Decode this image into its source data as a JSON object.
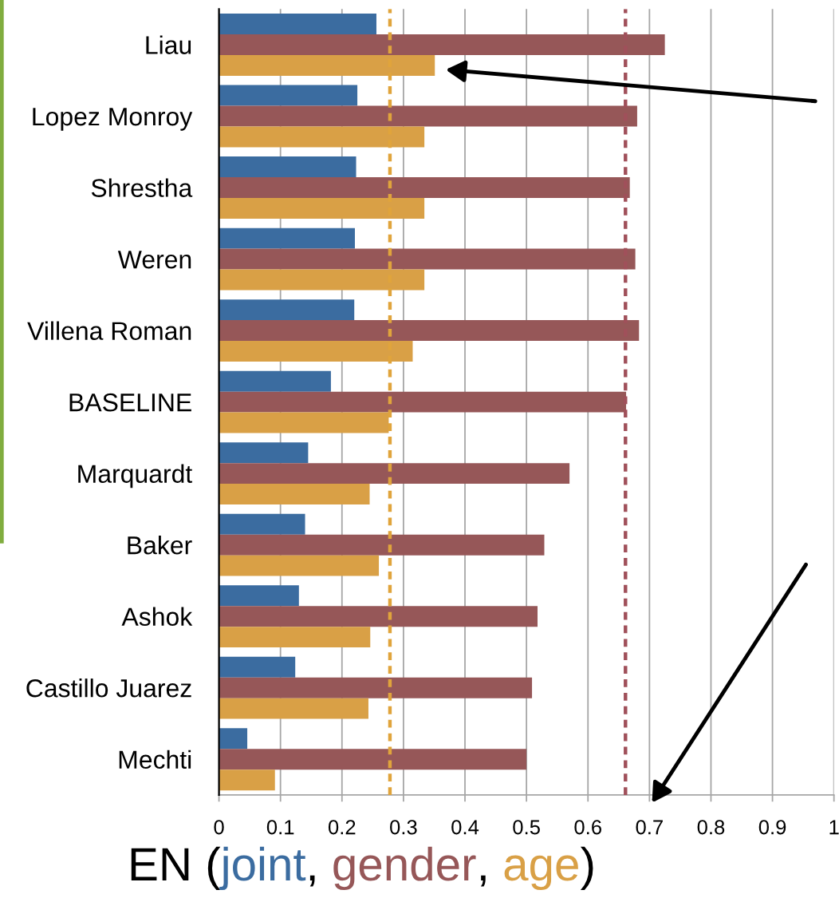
{
  "chart_data": {
    "type": "bar",
    "orientation": "horizontal",
    "title": "EN (joint, gender, age)",
    "categories": [
      "Liau",
      "Lopez Monroy",
      "Shrestha",
      "Weren",
      "Villena Roman",
      "BASELINE",
      "Marquardt",
      "Baker",
      "Ashok",
      "Castillo Juarez",
      "Mechti"
    ],
    "series": [
      {
        "color": "#3b6ca0",
        "values": [
          0.256,
          0.225,
          0.223,
          0.221,
          0.22,
          0.182,
          0.145,
          0.14,
          0.13,
          0.124,
          0.046
        ]
      },
      {
        "color": "#965758",
        "values": [
          0.725,
          0.68,
          0.668,
          0.677,
          0.683,
          0.662,
          0.57,
          0.529,
          0.518,
          0.509,
          0.5
        ]
      },
      {
        "color": "#d9a046",
        "values": [
          0.351,
          0.334,
          0.334,
          0.334,
          0.315,
          0.276,
          0.245,
          0.26,
          0.246,
          0.243,
          0.091
        ]
      }
    ],
    "xlim": [
      0,
      1
    ],
    "xticks": [
      0,
      0.1,
      0.2,
      0.3,
      0.4,
      0.5,
      0.6,
      0.7,
      0.8,
      0.9,
      1
    ],
    "ref_lines": [
      {
        "axis": "x",
        "value": 0.278,
        "color": "#e0a43c",
        "line_style": "dashed"
      },
      {
        "axis": "x",
        "value": 0.661,
        "color": "#a0505a",
        "line_style": "dashed"
      }
    ],
    "grid": "x"
  }
}
